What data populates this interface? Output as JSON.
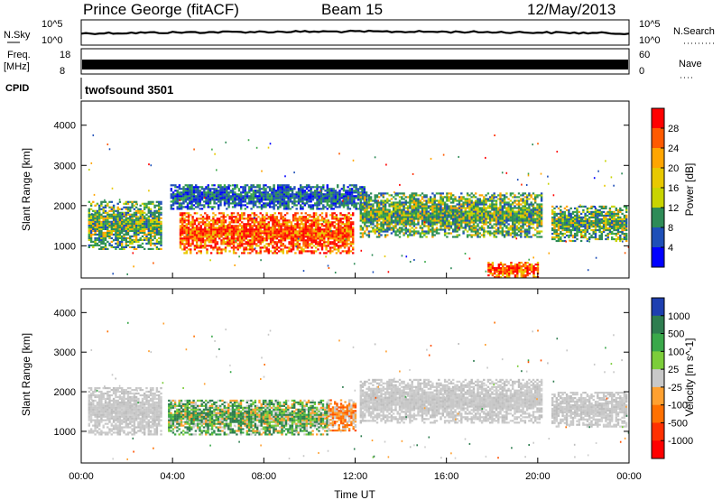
{
  "header": {
    "station": "Prince George (fitACF)",
    "beam": "Beam 15",
    "date": "12/May/2013"
  },
  "strips": {
    "nsky_label": "N.Sky",
    "nsky_ticks": [
      "10^5",
      "10^0"
    ],
    "nsearch_label": "N.Search",
    "nsearch_ticks": [
      "10^5",
      "10^0"
    ],
    "freq_label": "Freq.",
    "freq_unit": "[MHz]",
    "freq_ticks": [
      "18",
      "8"
    ],
    "nave_label": "Nave",
    "nave_ticks": [
      "60",
      "0"
    ],
    "cpid_label": "CPID",
    "cpid_value": "twofsound 3501"
  },
  "chart_data": [
    {
      "type": "heatmap",
      "name": "power-panel",
      "ylabel": "Slant Range [km]",
      "yticks": [
        "4000",
        "3000",
        "2000",
        "1000"
      ],
      "ylim": [
        200,
        4600
      ],
      "xlim": [
        0,
        24
      ],
      "colorbar_label": "Power [dB]",
      "colorbar_ticks": [
        "28",
        "24",
        "20",
        "16",
        "12",
        "8",
        "4"
      ],
      "colorbar_colors": [
        "#ff0000",
        "#ff5a00",
        "#ffa500",
        "#e8c800",
        "#c8d400",
        "#2e8b57",
        "#1e4fb8",
        "#0000ff"
      ],
      "bands": [
        {
          "t0": 0.3,
          "t1": 3.5,
          "r0": 900,
          "r1": 2100,
          "level": "medium"
        },
        {
          "t0": 4.3,
          "t1": 11.9,
          "r0": 800,
          "r1": 1800,
          "level": "strong"
        },
        {
          "t0": 3.9,
          "t1": 12.5,
          "r0": 1900,
          "r1": 2500,
          "level": "weak"
        },
        {
          "t0": 12.2,
          "t1": 20.2,
          "r0": 1200,
          "r1": 2300,
          "level": "medium"
        },
        {
          "t0": 20.6,
          "t1": 23.9,
          "r0": 1100,
          "r1": 2000,
          "level": "medium"
        },
        {
          "t0": 17.8,
          "t1": 20.0,
          "r0": 200,
          "r1": 600,
          "level": "strong"
        }
      ]
    },
    {
      "type": "heatmap",
      "name": "velocity-panel",
      "ylabel": "Slant Range [km]",
      "yticks": [
        "4000",
        "3000",
        "2000",
        "1000"
      ],
      "ylim": [
        200,
        4600
      ],
      "xlim": [
        0,
        24
      ],
      "xticks": [
        "00:00",
        "04:00",
        "08:00",
        "12:00",
        "16:00",
        "20:00",
        "00:00"
      ],
      "xlabel": "Time UT",
      "colorbar_label": "Velocity [m s^-1]",
      "colorbar_ticks": [
        "1000",
        "500",
        "100",
        "25",
        "-25",
        "-100",
        "-500",
        "-1000"
      ],
      "colorbar_colors": [
        "#1e3fb0",
        "#2e7d4f",
        "#3aa84a",
        "#7ccd3a",
        "#c8c8c8",
        "#ffa030",
        "#ff7000",
        "#ff3000",
        "#ff0000"
      ],
      "bands": [
        {
          "t0": 0.3,
          "t1": 3.5,
          "r0": 900,
          "r1": 2100,
          "kind": "ground"
        },
        {
          "t0": 3.8,
          "t1": 10.8,
          "r0": 900,
          "r1": 1800,
          "kind": "positive"
        },
        {
          "t0": 10.8,
          "t1": 12.0,
          "r0": 1000,
          "r1": 1800,
          "kind": "negative"
        },
        {
          "t0": 12.2,
          "t1": 20.2,
          "r0": 1200,
          "r1": 2300,
          "kind": "ground"
        },
        {
          "t0": 20.6,
          "t1": 23.9,
          "r0": 1100,
          "r1": 2000,
          "kind": "ground"
        }
      ]
    }
  ]
}
